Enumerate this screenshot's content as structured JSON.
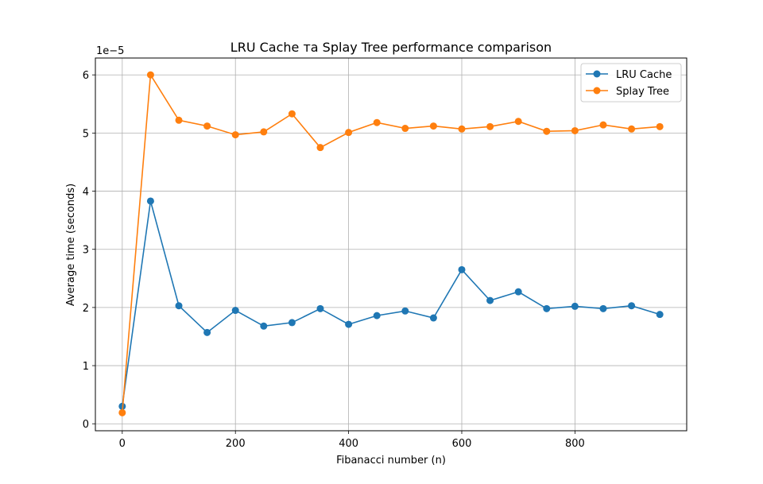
{
  "chart_data": {
    "type": "line",
    "title": "LRU Cache та Splay Tree performance comparison",
    "xlabel": "Fibanacci number (n)",
    "ylabel": "Average time (seconds)",
    "y_offset_label": "1e−5",
    "xlim": [
      -47.5,
      997.5
    ],
    "ylim": [
      -0.12,
      6.29
    ],
    "y_scale_factor": 1e-05,
    "x_ticks": [
      0,
      200,
      400,
      600,
      800
    ],
    "x_tick_labels": [
      "0",
      "200",
      "400",
      "600",
      "800"
    ],
    "y_ticks": [
      0,
      1,
      2,
      3,
      4,
      5,
      6
    ],
    "y_tick_labels": [
      "0",
      "1",
      "2",
      "3",
      "4",
      "5",
      "6"
    ],
    "grid": true,
    "legend_position": "top-right",
    "x": [
      0,
      50,
      100,
      150,
      200,
      250,
      300,
      350,
      400,
      450,
      500,
      550,
      600,
      650,
      700,
      750,
      800,
      850,
      900,
      950
    ],
    "series": [
      {
        "name": "LRU Cache",
        "color": "#1f77b4",
        "values": [
          0.3,
          3.83,
          2.03,
          1.57,
          1.95,
          1.68,
          1.74,
          1.98,
          1.71,
          1.86,
          1.94,
          1.82,
          2.65,
          2.12,
          2.27,
          1.98,
          2.02,
          1.98,
          2.03,
          1.88
        ]
      },
      {
        "name": "Splay Tree",
        "color": "#ff7f0e",
        "values": [
          0.19,
          6.0,
          5.22,
          5.12,
          4.97,
          5.02,
          5.33,
          4.75,
          5.01,
          5.18,
          5.08,
          5.12,
          5.07,
          5.11,
          5.2,
          5.03,
          5.04,
          5.14,
          5.07,
          5.11
        ]
      }
    ]
  }
}
